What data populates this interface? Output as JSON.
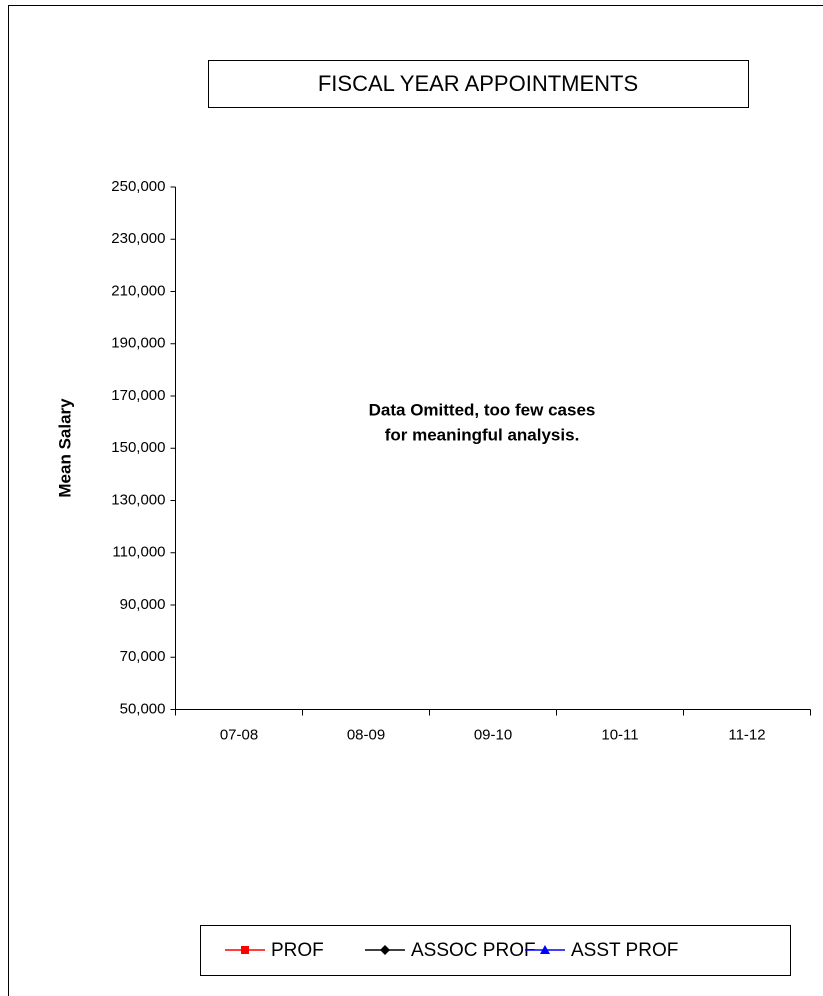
{
  "chart_data": {
    "type": "line",
    "title": "FISCAL YEAR APPOINTMENTS",
    "y_label": "Mean Salary",
    "annotation": [
      "Data Omitted, too few cases",
      "for meaningful analysis."
    ],
    "categories": [
      "07-08",
      "08-09",
      "09-10",
      "10-11",
      "11-12"
    ],
    "series": [
      {
        "name": "PROF",
        "color": "#ff0000",
        "marker": "square",
        "values": [
          null,
          null,
          null,
          null,
          null
        ]
      },
      {
        "name": "ASSOC PROF",
        "color": "#000000",
        "marker": "diamond",
        "values": [
          null,
          null,
          null,
          null,
          null
        ]
      },
      {
        "name": "ASST PROF",
        "color": "#0000ff",
        "marker": "triangle",
        "values": [
          null,
          null,
          null,
          null,
          null
        ]
      }
    ],
    "ylim": [
      50000,
      250000
    ],
    "yticks": [
      {
        "value": 50000,
        "label": "50,000"
      },
      {
        "value": 70000,
        "label": "70,000"
      },
      {
        "value": 90000,
        "label": "90,000"
      },
      {
        "value": 110000,
        "label": "110,000"
      },
      {
        "value": 130000,
        "label": "130,000"
      },
      {
        "value": 150000,
        "label": "150,000"
      },
      {
        "value": 170000,
        "label": "170,000"
      },
      {
        "value": 190000,
        "label": "190,000"
      },
      {
        "value": 210000,
        "label": "210,000"
      },
      {
        "value": 230000,
        "label": "230,000"
      },
      {
        "value": 250000,
        "label": "250,000"
      }
    ],
    "grid": false,
    "legend": "bottom"
  }
}
